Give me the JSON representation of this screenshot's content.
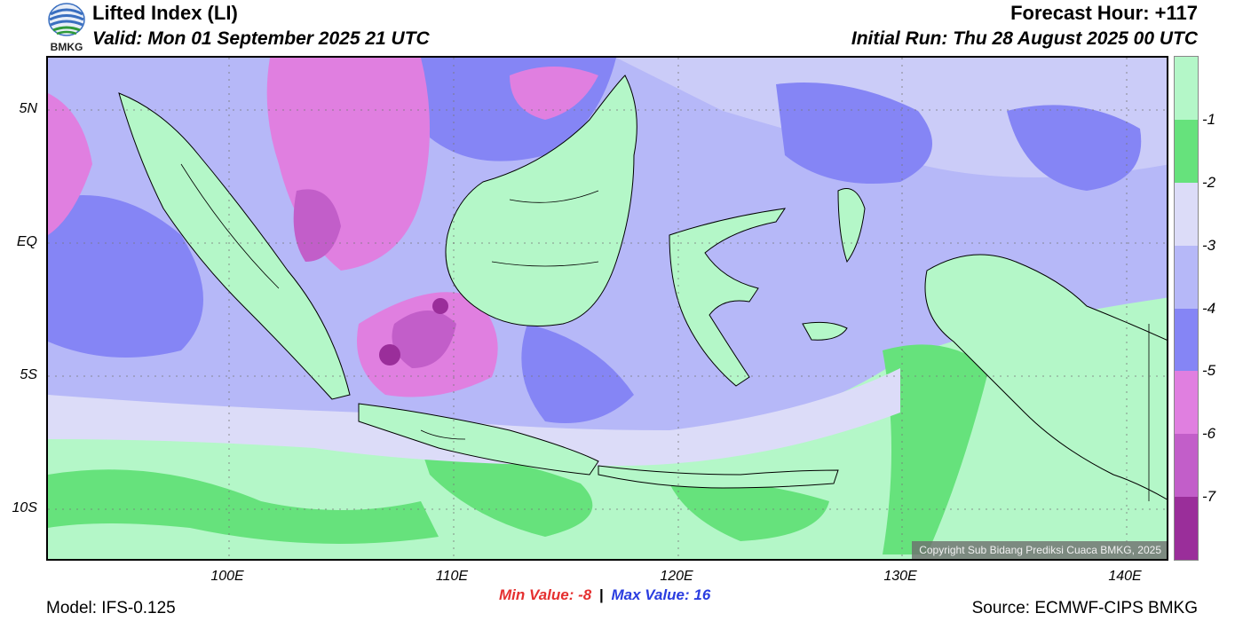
{
  "header": {
    "title": "Lifted Index (LI)",
    "valid": "Valid: Mon 01 September 2025 21 UTC",
    "forecast_hour": "Forecast Hour: +117",
    "initial_run": "Initial Run: Thu 28 August 2025 00 UTC",
    "logo_text": "BMKG"
  },
  "map": {
    "lat_labels": [
      "5N",
      "EQ",
      "5S",
      "10S"
    ],
    "lon_labels": [
      "100E",
      "110E",
      "120E",
      "130E",
      "140E"
    ],
    "copyright": "Copyright Sub Bidang Prediksi Cuaca BMKG, 2025",
    "colors": {
      "ocean_default": "#b6b8f8",
      "land_stable": "#b4f7c8",
      "green": "#66e27c",
      "light_lavender": "#dcdcf8",
      "blue": "#8585f5",
      "pink": "#e07fe0",
      "magenta": "#c25ec9",
      "dark_magenta": "#9a2e9a"
    }
  },
  "colorbar": {
    "labels": [
      "-1",
      "-2",
      "-3",
      "-4",
      "-5",
      "-6",
      "-7"
    ],
    "colors": [
      "#b4f7c8",
      "#66e27c",
      "#dcdcf8",
      "#b6b8f8",
      "#8585f5",
      "#e07fe0",
      "#c25ec9",
      "#9a2e9a"
    ]
  },
  "stats": {
    "min_label": "Min Value:",
    "min_value": "-8",
    "separator": "|",
    "max_label": "Max Value:",
    "max_value": "16"
  },
  "footer": {
    "model": "Model: IFS-0.125",
    "source": "Source: ECMWF-CIPS BMKG"
  }
}
